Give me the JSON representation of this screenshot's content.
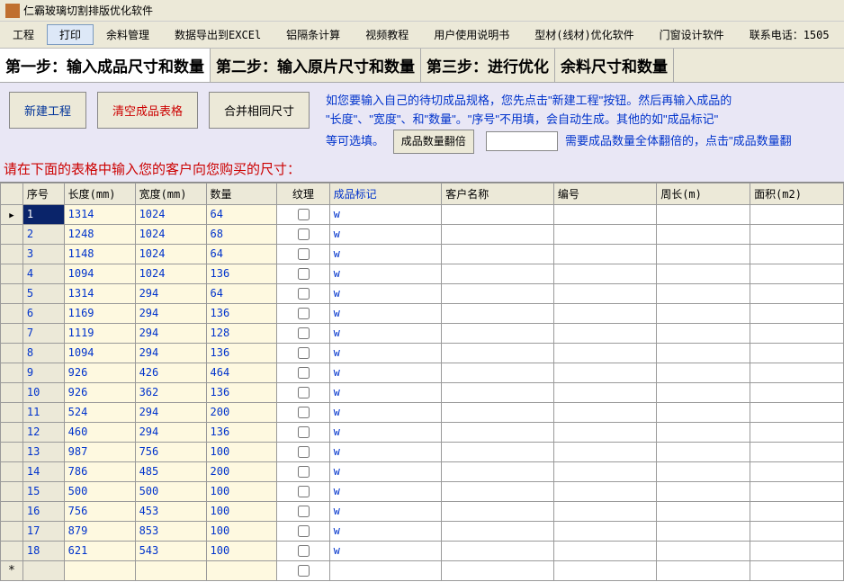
{
  "window": {
    "title": "仁霸玻璃切割排版优化软件"
  },
  "menu": {
    "items": [
      "工程",
      "打印",
      "余料管理",
      "数据导出到EXCEl",
      "铝隔条计算",
      "视频教程",
      "用户使用说明书",
      "型材(线材)优化软件",
      "门窗设计软件",
      "联系电话：1505"
    ],
    "active_index": 1
  },
  "steps": {
    "s1": "第一步：输入成品尺寸和数量",
    "s2": "第二步：输入原片尺寸和数量",
    "s3": "第三步：进行优化",
    "s4": "余料尺寸和数量"
  },
  "buttons": {
    "new_project": "新建工程",
    "clear_table": "清空成品表格",
    "merge_same": "合并相同尺寸"
  },
  "instructions": {
    "line1": "如您要输入自己的待切成品规格，您先点击\"新建工程\"按钮。然后再输入成品的",
    "line2": "\"长度\"、\"宽度\"、和\"数量\"。\"序号\"不用填，会自动生成。其他的如\"成品标记\"",
    "line3": "等可选填。",
    "double_btn": "成品数量翻倍",
    "double_hint": "需要成品数量全体翻倍的，点击\"成品数量翻"
  },
  "red_hint": "请在下面的表格中输入您的客户向您购买的尺寸：",
  "columns": {
    "seq": "序号",
    "len": "长度(mm)",
    "wid": "宽度(mm)",
    "qty": "数量",
    "tex": "纹理",
    "mark": "成品标记",
    "cust": "客户名称",
    "code": "编号",
    "peri": "周长(m)",
    "area": "面积(m2)"
  },
  "rows": [
    {
      "seq": "1",
      "len": "1314",
      "wid": "1024",
      "qty": "64",
      "mark": "w"
    },
    {
      "seq": "2",
      "len": "1248",
      "wid": "1024",
      "qty": "68",
      "mark": "w"
    },
    {
      "seq": "3",
      "len": "1148",
      "wid": "1024",
      "qty": "64",
      "mark": "w"
    },
    {
      "seq": "4",
      "len": "1094",
      "wid": "1024",
      "qty": "136",
      "mark": "w"
    },
    {
      "seq": "5",
      "len": "1314",
      "wid": "294",
      "qty": "64",
      "mark": "w"
    },
    {
      "seq": "6",
      "len": "1169",
      "wid": "294",
      "qty": "136",
      "mark": "w"
    },
    {
      "seq": "7",
      "len": "1119",
      "wid": "294",
      "qty": "128",
      "mark": "w"
    },
    {
      "seq": "8",
      "len": "1094",
      "wid": "294",
      "qty": "136",
      "mark": "w"
    },
    {
      "seq": "9",
      "len": "926",
      "wid": "426",
      "qty": "464",
      "mark": "w"
    },
    {
      "seq": "10",
      "len": "926",
      "wid": "362",
      "qty": "136",
      "mark": "w"
    },
    {
      "seq": "11",
      "len": "524",
      "wid": "294",
      "qty": "200",
      "mark": "w"
    },
    {
      "seq": "12",
      "len": "460",
      "wid": "294",
      "qty": "136",
      "mark": "w"
    },
    {
      "seq": "13",
      "len": "987",
      "wid": "756",
      "qty": "100",
      "mark": "w"
    },
    {
      "seq": "14",
      "len": "786",
      "wid": "485",
      "qty": "200",
      "mark": "w"
    },
    {
      "seq": "15",
      "len": "500",
      "wid": "500",
      "qty": "100",
      "mark": "w"
    },
    {
      "seq": "16",
      "len": "756",
      "wid": "453",
      "qty": "100",
      "mark": "w"
    },
    {
      "seq": "17",
      "len": "879",
      "wid": "853",
      "qty": "100",
      "mark": "w"
    },
    {
      "seq": "18",
      "len": "621",
      "wid": "543",
      "qty": "100",
      "mark": "w"
    }
  ]
}
